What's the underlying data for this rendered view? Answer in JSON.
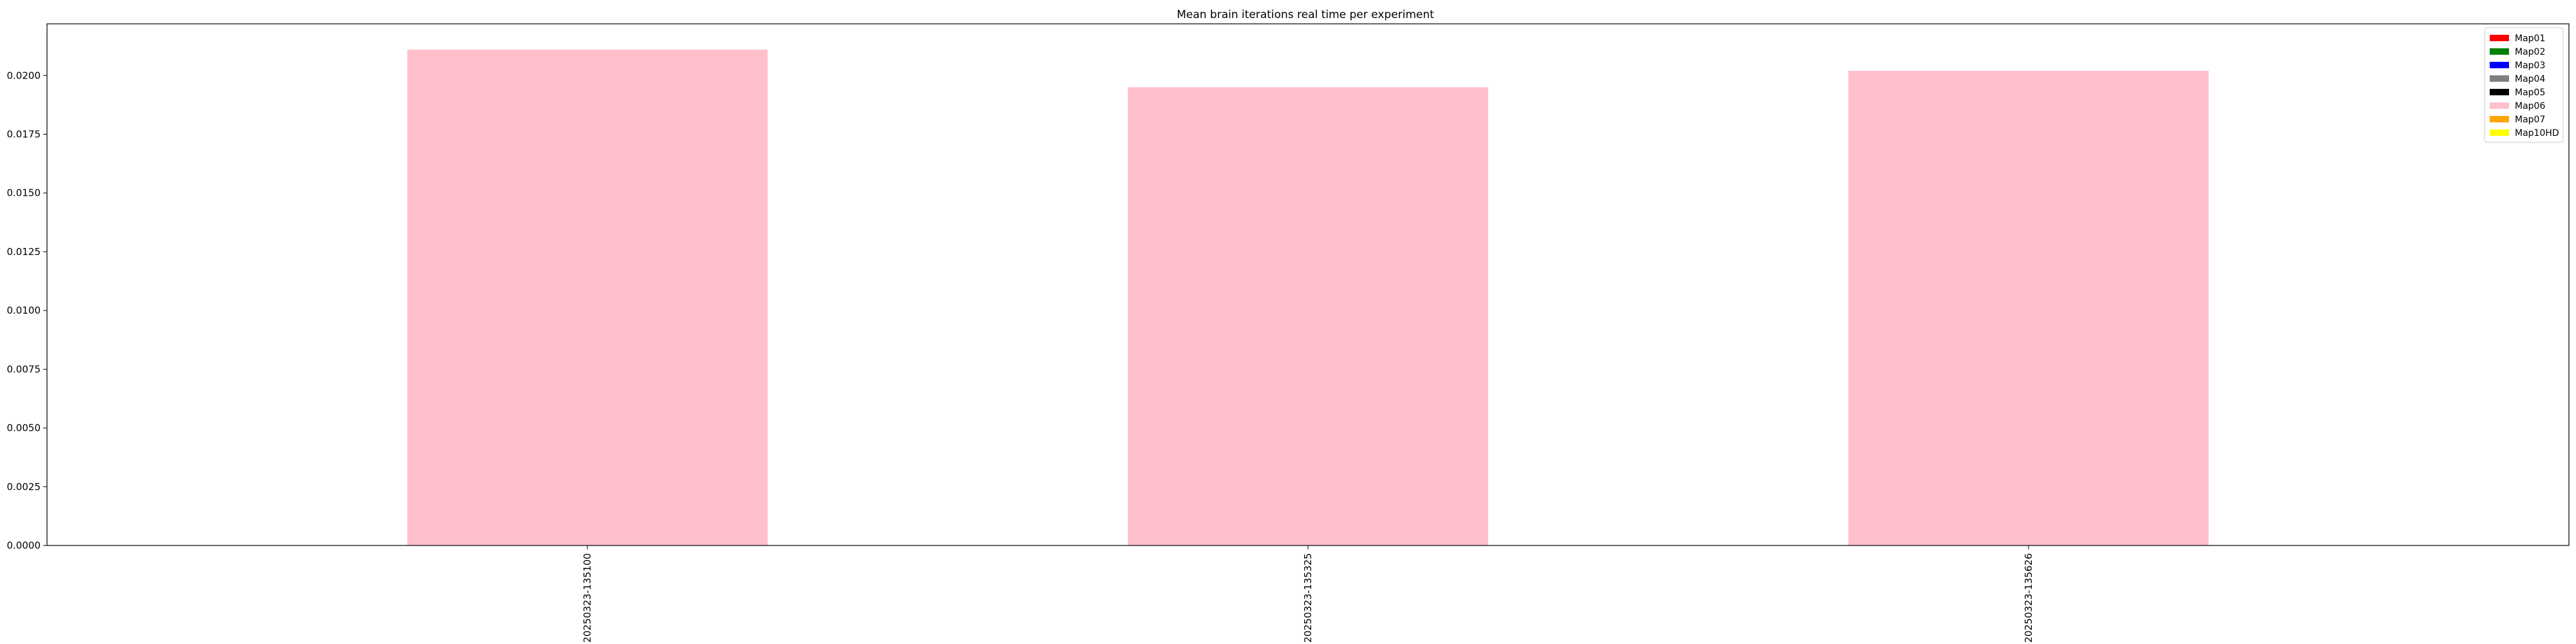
{
  "chart_data": {
    "type": "bar",
    "title": "Mean brain iterations real time per experiment",
    "xlabel": "",
    "ylabel": "",
    "categories": [
      "20250323-135100",
      "20250323-135325",
      "20250323-135626"
    ],
    "values": [
      0.0211,
      0.0195,
      0.0202
    ],
    "bar_color": "#ffc0cb",
    "ylim": [
      0,
      0.0222
    ],
    "yticks": [
      "0.0000",
      "0.0025",
      "0.0050",
      "0.0075",
      "0.0100",
      "0.0125",
      "0.0150",
      "0.0175",
      "0.0200"
    ],
    "ytick_values": [
      0,
      0.0025,
      0.005,
      0.0075,
      0.01,
      0.0125,
      0.015,
      0.0175,
      0.02
    ],
    "grid": false,
    "legend_position": "top-right",
    "legend": [
      {
        "name": "Map01",
        "color": "#ff0000"
      },
      {
        "name": "Map02",
        "color": "#008000"
      },
      {
        "name": "Map03",
        "color": "#0000ff"
      },
      {
        "name": "Map04",
        "color": "#808080"
      },
      {
        "name": "Map05",
        "color": "#000000"
      },
      {
        "name": "Map06",
        "color": "#ffc0cb"
      },
      {
        "name": "Map07",
        "color": "#ffa500"
      },
      {
        "name": "Map10HD",
        "color": "#ffff00"
      }
    ]
  }
}
